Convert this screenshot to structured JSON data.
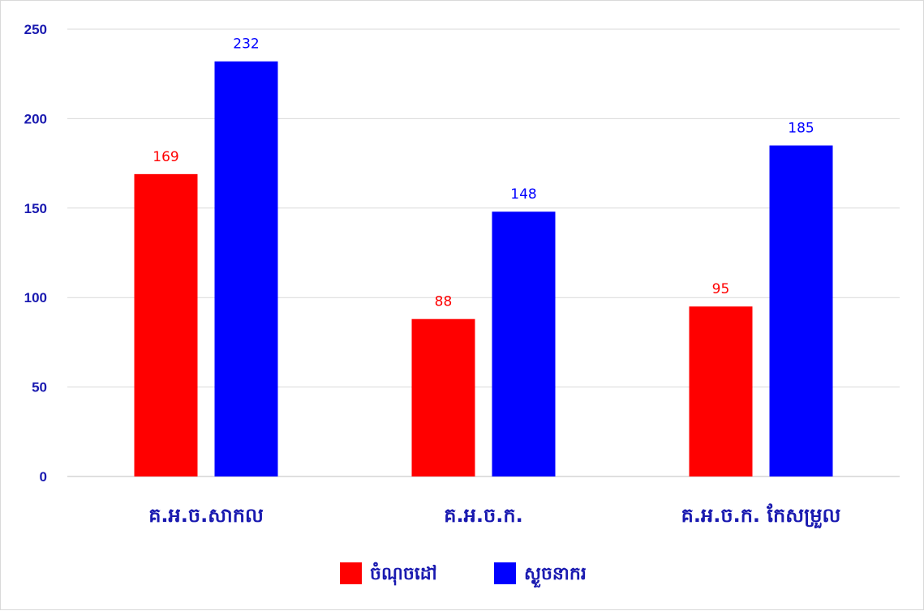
{
  "chart_data": {
    "type": "bar",
    "categories": [
      "គ.អ.ច.សាកល",
      "គ.អ.ច.ក.",
      "គ.អ.ច.ក. កែសម្រួល"
    ],
    "series": [
      {
        "name": "ចំណុចដៅ",
        "color": "#ff0000",
        "values": [
          169,
          88,
          95
        ]
      },
      {
        "name": "ស្ងួចនាករ",
        "color": "#0000ff",
        "values": [
          232,
          148,
          185
        ]
      }
    ],
    "ylim": [
      0,
      250
    ],
    "yticks": [
      0,
      50,
      100,
      150,
      200,
      250
    ],
    "grid": true,
    "legend_position": "bottom"
  }
}
